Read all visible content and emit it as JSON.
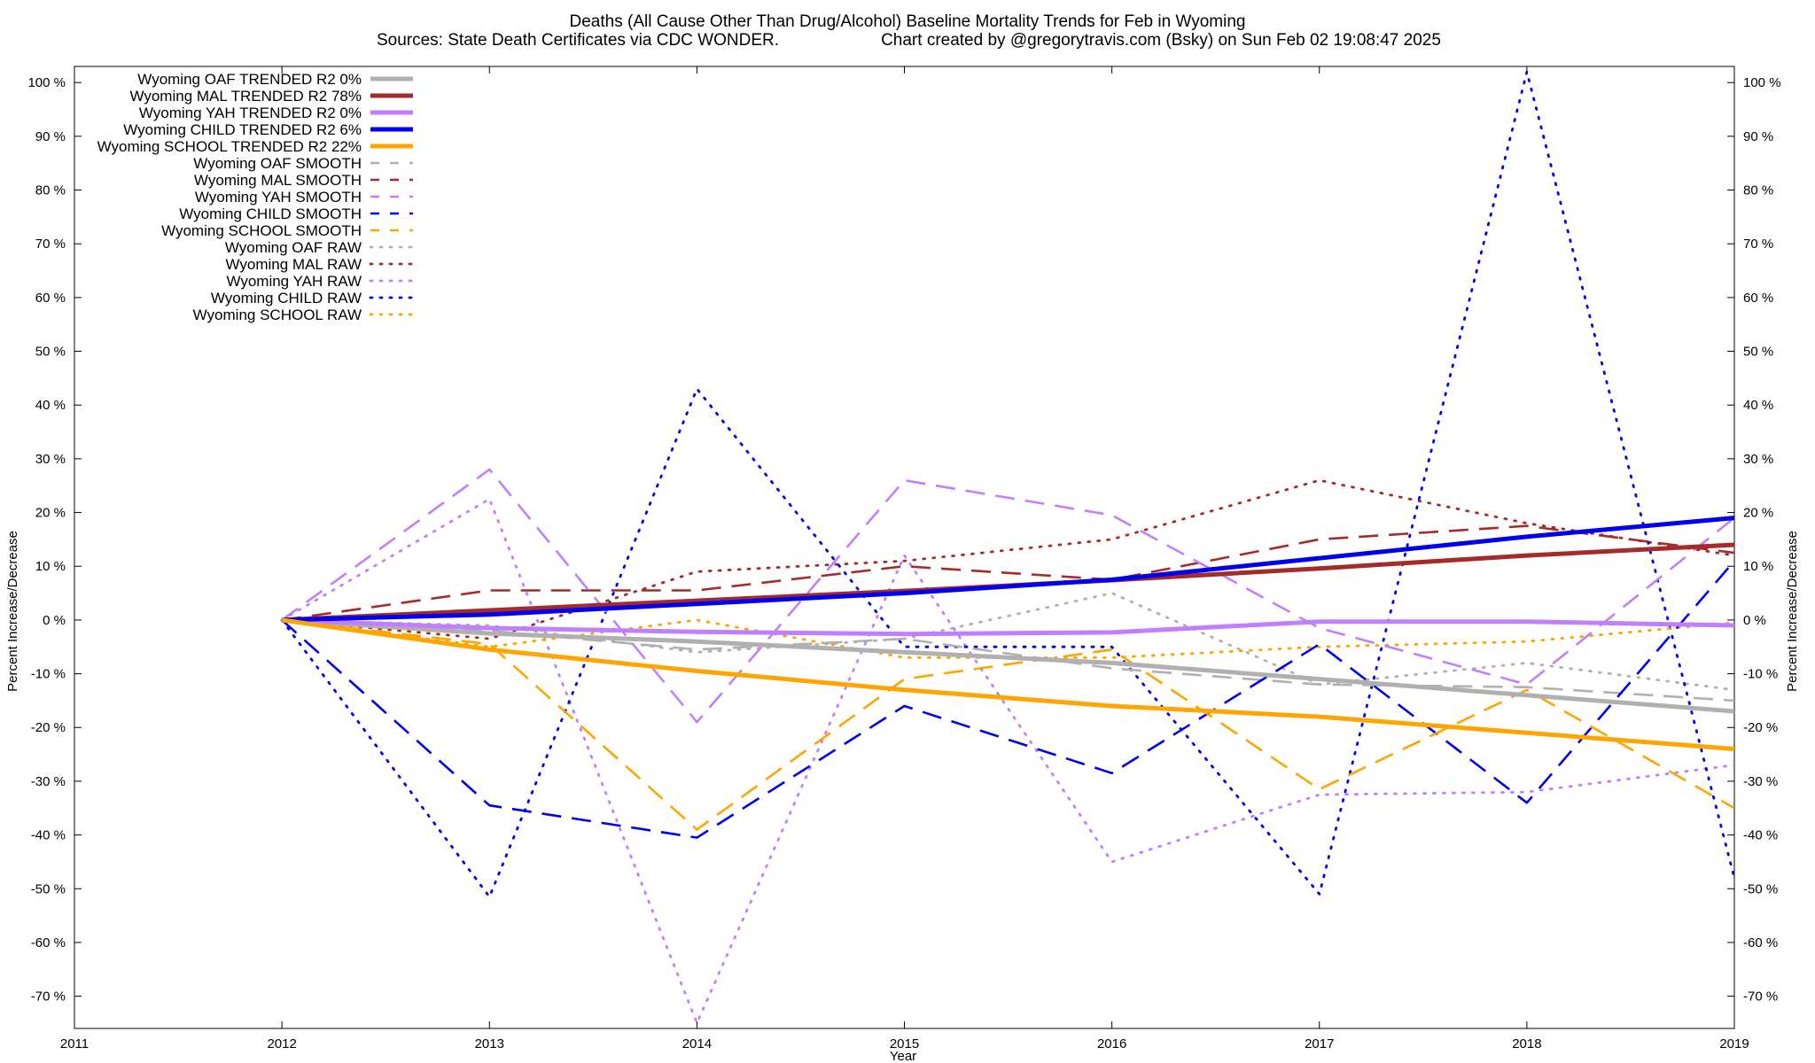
{
  "title_line1": "Deaths (All Cause Other Than Drug/Alcohol)  Baseline Mortality Trends for Feb in Wyoming",
  "title_line2_left": "Sources: State Death Certificates via CDC WONDER.",
  "title_line2_right": "Chart created by @gregorytravis.com (Bsky) on Sun Feb 02 19:08:47 2025",
  "chart_data": {
    "type": "line",
    "xlabel": "Year",
    "ylabel": "Percent Increase/Decrease",
    "xlim": [
      2011,
      2019
    ],
    "ylim": [
      -76,
      103
    ],
    "x_ticks": [
      "2011",
      "2012",
      "2013",
      "2014",
      "2015",
      "2016",
      "2017",
      "2018",
      "2019"
    ],
    "y_ticks": [
      100,
      90,
      80,
      70,
      60,
      50,
      40,
      30,
      20,
      10,
      0,
      -10,
      -20,
      -30,
      -40,
      -50,
      -60,
      -70
    ],
    "y_tick_suffix": " %",
    "grid": false,
    "legend_position": "top-left",
    "x": [
      2012,
      2013,
      2014,
      2015,
      2016,
      2017,
      2018,
      2019
    ],
    "series": [
      {
        "name": "Wyoming OAF TRENDED R2  0%",
        "style": "solid",
        "color": "#b0b0b0",
        "values": [
          0,
          -2.5,
          -4,
          -6,
          -8,
          -11,
          -14,
          -17
        ]
      },
      {
        "name": "Wyoming MAL TRENDED R2  78%",
        "style": "solid",
        "color": "#a52a2a",
        "values": [
          0,
          1.8,
          3.6,
          5.4,
          7.4,
          9.6,
          12,
          14
        ]
      },
      {
        "name": "Wyoming YAH TRENDED R2  0%",
        "style": "solid",
        "color": "#bf7fff",
        "values": [
          0,
          -1.5,
          -2.2,
          -2.6,
          -2.3,
          -0.3,
          -0.3,
          -1
        ]
      },
      {
        "name": "Wyoming CHILD TRENDED R2  6%",
        "style": "solid",
        "color": "#0000ee",
        "values": [
          0,
          1,
          3,
          5,
          7.5,
          11.5,
          15.5,
          19
        ]
      },
      {
        "name": "Wyoming SCHOOL TRENDED R2  22%",
        "style": "solid",
        "color": "#ffa500",
        "values": [
          0,
          -5.5,
          -9.5,
          -13,
          -16,
          -18,
          -21,
          -24
        ]
      },
      {
        "name": "Wyoming OAF SMOOTH",
        "style": "dashed",
        "color": "#b0b0b0",
        "values": [
          0,
          -2,
          -5.5,
          -3.5,
          -9,
          -12,
          -12.5,
          -15
        ]
      },
      {
        "name": "Wyoming MAL SMOOTH",
        "style": "dashed",
        "color": "#a52a2a",
        "values": [
          0,
          5.5,
          5.5,
          10,
          7.5,
          15,
          17.5,
          12.5
        ]
      },
      {
        "name": "Wyoming YAH SMOOTH",
        "style": "dashed",
        "color": "#bf7fff",
        "values": [
          0,
          28,
          -19,
          26,
          19.5,
          -1.5,
          -12,
          19
        ]
      },
      {
        "name": "Wyoming CHILD SMOOTH",
        "style": "dashed",
        "color": "#0000ee",
        "values": [
          0,
          -34.5,
          -40.5,
          -16,
          -28.5,
          -4.5,
          -34,
          11
        ]
      },
      {
        "name": "Wyoming SCHOOL SMOOTH",
        "style": "dashed",
        "color": "#ffa500",
        "values": [
          0,
          -4.5,
          -39,
          -11,
          -5.5,
          -31.5,
          -13,
          -35
        ]
      },
      {
        "name": "Wyoming OAF RAW",
        "style": "dotted",
        "color": "#b0b0b0",
        "values": [
          0,
          -1,
          -6,
          -3.5,
          5,
          -12,
          -8,
          -13
        ]
      },
      {
        "name": "Wyoming MAL RAW",
        "style": "dotted",
        "color": "#a52a2a",
        "values": [
          0,
          -3.5,
          9,
          11,
          15,
          26,
          18,
          12
        ]
      },
      {
        "name": "Wyoming YAH RAW",
        "style": "dotted",
        "color": "#bf7fff",
        "values": [
          0,
          22.5,
          -75,
          12,
          -45,
          -32.5,
          -32,
          -27
        ]
      },
      {
        "name": "Wyoming CHILD RAW",
        "style": "dotted",
        "color": "#0000ee",
        "values": [
          0,
          -51.5,
          43,
          -5,
          -5,
          -51,
          102,
          -48
        ]
      },
      {
        "name": "Wyoming SCHOOL RAW",
        "style": "dotted",
        "color": "#ffa500",
        "values": [
          0,
          -5,
          0,
          -7,
          -7,
          -5,
          -4,
          -0.5
        ]
      }
    ]
  }
}
